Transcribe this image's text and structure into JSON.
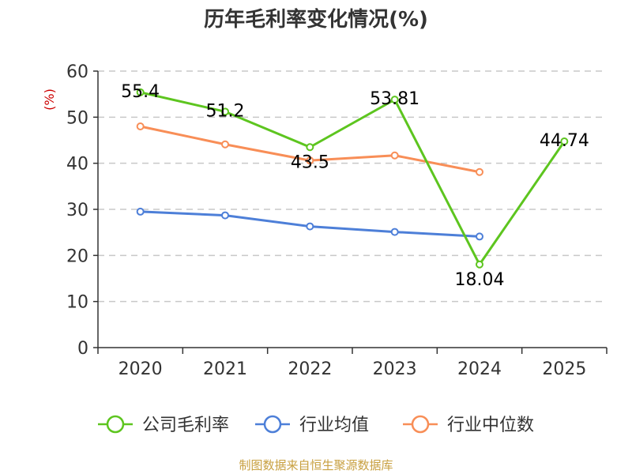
{
  "title": "历年毛利率变化情况(%)",
  "source": "制图数据来自恒生聚源数据库",
  "chart_data": {
    "type": "line",
    "title": "历年毛利率变化情况(%)",
    "ylabel": "(%)",
    "xlabel": "",
    "ylim": [
      0,
      60
    ],
    "yticks": [
      0,
      10,
      20,
      30,
      40,
      50,
      60
    ],
    "categories": [
      "2020",
      "2021",
      "2022",
      "2023",
      "2024",
      "2025"
    ],
    "grid": true,
    "legend_position": "bottom",
    "series": [
      {
        "name": "公司毛利率",
        "color": "#5dc51f",
        "values": [
          55.4,
          51.2,
          43.5,
          53.81,
          18.04,
          44.74
        ],
        "labels": [
          "55.4",
          "51.2",
          "43.5",
          "53.81",
          "18.04",
          "44.74"
        ]
      },
      {
        "name": "行业均值",
        "color": "#4d7fd8",
        "values": [
          29.5,
          28.7,
          26.3,
          25.1,
          24.1,
          null
        ]
      },
      {
        "name": "行业中位数",
        "color": "#f88e57",
        "values": [
          48.0,
          44.1,
          40.6,
          41.7,
          38.1,
          null
        ]
      }
    ]
  }
}
